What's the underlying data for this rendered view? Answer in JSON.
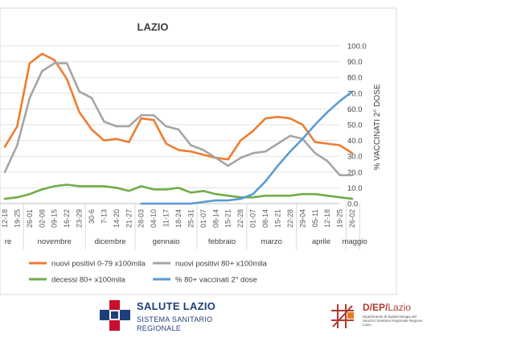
{
  "chart_data": {
    "type": "line",
    "title": "LAZIO",
    "ylabel_right": "% VACCINATI 2° DOSE",
    "ylim": [
      0,
      100
    ],
    "yticks": [
      "0.0",
      "10.0",
      "20.0",
      "30.0",
      "40.0",
      "50.0",
      "60.0",
      "70.0",
      "80.0",
      "90.0",
      "100.0"
    ],
    "categories": [
      "12-18",
      "19-25",
      "26-01",
      "02-08",
      "09-15",
      "16-22",
      "23-29",
      "30-6",
      "7-13",
      "14-20",
      "21-27",
      "28-03",
      "04-10",
      "11-17",
      "18-24",
      "25-31",
      "01-07",
      "08-14",
      "15-21",
      "22-28",
      "01-07",
      "08-14",
      "15-21",
      "22-28",
      "29-04",
      "05-11",
      "12-18",
      "19-25",
      "26-02"
    ],
    "months": [
      "ottobre",
      "novembre",
      "dicembre",
      "gennaio",
      "febbraio",
      "marzo",
      "aprile",
      "maggio"
    ],
    "month_labels_visible": [
      "re",
      "novembre",
      "dicembre",
      "gennaio",
      "febbraio",
      "marzo",
      "aprile",
      "maggio"
    ],
    "series": [
      {
        "name": "nuovi positivi 0-79 x100mila",
        "color": "#ED7D31",
        "values": [
          36,
          49,
          89,
          95,
          91,
          79,
          58,
          47,
          40,
          41,
          39,
          54,
          53,
          38,
          34,
          33,
          31,
          29,
          28,
          40,
          46,
          54,
          55,
          54,
          50,
          39,
          38,
          37,
          32
        ]
      },
      {
        "name": "nuovi positivi 80+ x100mila",
        "color": "#A5A5A5",
        "values": [
          20,
          37,
          67,
          84,
          89,
          89,
          71,
          67,
          52,
          49,
          49,
          56,
          56,
          49,
          47,
          37,
          34,
          29,
          24,
          29,
          32,
          33,
          38,
          43,
          41,
          32,
          27,
          18,
          18
        ]
      },
      {
        "name": "decessi 80+ x100mila",
        "color": "#70AD47",
        "values": [
          3,
          4,
          6,
          9,
          11,
          12,
          11,
          11,
          11,
          10,
          8,
          11,
          9,
          9,
          10,
          7,
          8,
          6,
          5,
          4,
          4,
          5,
          5,
          5,
          6,
          6,
          5,
          4,
          3
        ]
      },
      {
        "name": "% 80+ vaccinati 2° dose",
        "color": "#5B9BD5",
        "values": [
          null,
          null,
          null,
          null,
          null,
          null,
          null,
          null,
          null,
          null,
          null,
          0,
          0,
          0,
          0,
          0,
          1,
          2,
          2,
          3,
          6,
          14,
          24,
          33,
          41,
          50,
          58,
          65,
          71
        ]
      }
    ],
    "legend": "bottom"
  },
  "logos": {
    "salute_title": "SALUTE LAZIO",
    "salute_sub1": "SISTEMA SANITARIO",
    "salute_sub2": "REGIONALE",
    "dep_name_a": "D/EP/",
    "dep_name_b": "Lazio",
    "dep_sub": "Dipartimento di Epidemiologia del Servizio Sanitario Regionale Regione Lazio"
  }
}
